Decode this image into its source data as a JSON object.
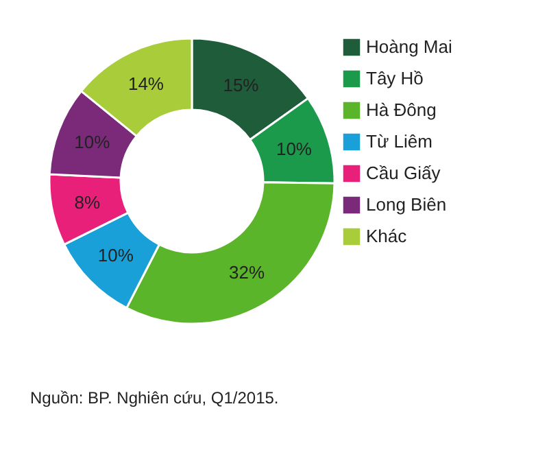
{
  "chart_data": {
    "type": "donut",
    "categories": [
      "Hoàng Mai",
      "Tây Hồ",
      "Hà Đông",
      "Từ Liêm",
      "Cầu Giấy",
      "Long Biên",
      "Khác"
    ],
    "values": [
      15,
      10,
      32,
      10,
      8,
      10,
      14
    ],
    "colors": [
      "#1e5c3a",
      "#1a9a4a",
      "#5ab52a",
      "#1aa0d8",
      "#e8207a",
      "#7b2a7a",
      "#a8cc3a"
    ],
    "value_labels": [
      "15%",
      "10%",
      "32%",
      "10%",
      "8%",
      "10%",
      "14%"
    ],
    "legend": "right",
    "annotations": [
      "Nguồn: BP. Nghiên cứu, Q1/2015."
    ]
  }
}
